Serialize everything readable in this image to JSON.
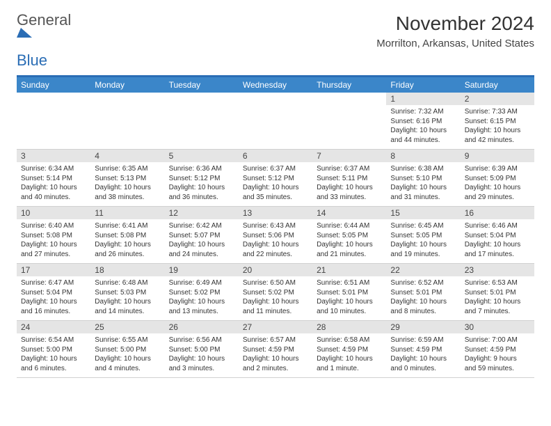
{
  "logo": {
    "text1": "General",
    "text2": "Blue",
    "mark_color": "#2a6db5"
  },
  "header": {
    "month": "November 2024",
    "location": "Morrilton, Arkansas, United States"
  },
  "colors": {
    "header_bar": "#3b86c9",
    "top_border": "#2a6db5",
    "daynum_bg": "#e5e5e5"
  },
  "weekdays": [
    "Sunday",
    "Monday",
    "Tuesday",
    "Wednesday",
    "Thursday",
    "Friday",
    "Saturday"
  ],
  "weeks": [
    [
      {
        "d": "",
        "sr": "",
        "ss": "",
        "dl": ""
      },
      {
        "d": "",
        "sr": "",
        "ss": "",
        "dl": ""
      },
      {
        "d": "",
        "sr": "",
        "ss": "",
        "dl": ""
      },
      {
        "d": "",
        "sr": "",
        "ss": "",
        "dl": ""
      },
      {
        "d": "",
        "sr": "",
        "ss": "",
        "dl": ""
      },
      {
        "d": "1",
        "sr": "Sunrise: 7:32 AM",
        "ss": "Sunset: 6:16 PM",
        "dl": "Daylight: 10 hours and 44 minutes."
      },
      {
        "d": "2",
        "sr": "Sunrise: 7:33 AM",
        "ss": "Sunset: 6:15 PM",
        "dl": "Daylight: 10 hours and 42 minutes."
      }
    ],
    [
      {
        "d": "3",
        "sr": "Sunrise: 6:34 AM",
        "ss": "Sunset: 5:14 PM",
        "dl": "Daylight: 10 hours and 40 minutes."
      },
      {
        "d": "4",
        "sr": "Sunrise: 6:35 AM",
        "ss": "Sunset: 5:13 PM",
        "dl": "Daylight: 10 hours and 38 minutes."
      },
      {
        "d": "5",
        "sr": "Sunrise: 6:36 AM",
        "ss": "Sunset: 5:12 PM",
        "dl": "Daylight: 10 hours and 36 minutes."
      },
      {
        "d": "6",
        "sr": "Sunrise: 6:37 AM",
        "ss": "Sunset: 5:12 PM",
        "dl": "Daylight: 10 hours and 35 minutes."
      },
      {
        "d": "7",
        "sr": "Sunrise: 6:37 AM",
        "ss": "Sunset: 5:11 PM",
        "dl": "Daylight: 10 hours and 33 minutes."
      },
      {
        "d": "8",
        "sr": "Sunrise: 6:38 AM",
        "ss": "Sunset: 5:10 PM",
        "dl": "Daylight: 10 hours and 31 minutes."
      },
      {
        "d": "9",
        "sr": "Sunrise: 6:39 AM",
        "ss": "Sunset: 5:09 PM",
        "dl": "Daylight: 10 hours and 29 minutes."
      }
    ],
    [
      {
        "d": "10",
        "sr": "Sunrise: 6:40 AM",
        "ss": "Sunset: 5:08 PM",
        "dl": "Daylight: 10 hours and 27 minutes."
      },
      {
        "d": "11",
        "sr": "Sunrise: 6:41 AM",
        "ss": "Sunset: 5:08 PM",
        "dl": "Daylight: 10 hours and 26 minutes."
      },
      {
        "d": "12",
        "sr": "Sunrise: 6:42 AM",
        "ss": "Sunset: 5:07 PM",
        "dl": "Daylight: 10 hours and 24 minutes."
      },
      {
        "d": "13",
        "sr": "Sunrise: 6:43 AM",
        "ss": "Sunset: 5:06 PM",
        "dl": "Daylight: 10 hours and 22 minutes."
      },
      {
        "d": "14",
        "sr": "Sunrise: 6:44 AM",
        "ss": "Sunset: 5:05 PM",
        "dl": "Daylight: 10 hours and 21 minutes."
      },
      {
        "d": "15",
        "sr": "Sunrise: 6:45 AM",
        "ss": "Sunset: 5:05 PM",
        "dl": "Daylight: 10 hours and 19 minutes."
      },
      {
        "d": "16",
        "sr": "Sunrise: 6:46 AM",
        "ss": "Sunset: 5:04 PM",
        "dl": "Daylight: 10 hours and 17 minutes."
      }
    ],
    [
      {
        "d": "17",
        "sr": "Sunrise: 6:47 AM",
        "ss": "Sunset: 5:04 PM",
        "dl": "Daylight: 10 hours and 16 minutes."
      },
      {
        "d": "18",
        "sr": "Sunrise: 6:48 AM",
        "ss": "Sunset: 5:03 PM",
        "dl": "Daylight: 10 hours and 14 minutes."
      },
      {
        "d": "19",
        "sr": "Sunrise: 6:49 AM",
        "ss": "Sunset: 5:02 PM",
        "dl": "Daylight: 10 hours and 13 minutes."
      },
      {
        "d": "20",
        "sr": "Sunrise: 6:50 AM",
        "ss": "Sunset: 5:02 PM",
        "dl": "Daylight: 10 hours and 11 minutes."
      },
      {
        "d": "21",
        "sr": "Sunrise: 6:51 AM",
        "ss": "Sunset: 5:01 PM",
        "dl": "Daylight: 10 hours and 10 minutes."
      },
      {
        "d": "22",
        "sr": "Sunrise: 6:52 AM",
        "ss": "Sunset: 5:01 PM",
        "dl": "Daylight: 10 hours and 8 minutes."
      },
      {
        "d": "23",
        "sr": "Sunrise: 6:53 AM",
        "ss": "Sunset: 5:01 PM",
        "dl": "Daylight: 10 hours and 7 minutes."
      }
    ],
    [
      {
        "d": "24",
        "sr": "Sunrise: 6:54 AM",
        "ss": "Sunset: 5:00 PM",
        "dl": "Daylight: 10 hours and 6 minutes."
      },
      {
        "d": "25",
        "sr": "Sunrise: 6:55 AM",
        "ss": "Sunset: 5:00 PM",
        "dl": "Daylight: 10 hours and 4 minutes."
      },
      {
        "d": "26",
        "sr": "Sunrise: 6:56 AM",
        "ss": "Sunset: 5:00 PM",
        "dl": "Daylight: 10 hours and 3 minutes."
      },
      {
        "d": "27",
        "sr": "Sunrise: 6:57 AM",
        "ss": "Sunset: 4:59 PM",
        "dl": "Daylight: 10 hours and 2 minutes."
      },
      {
        "d": "28",
        "sr": "Sunrise: 6:58 AM",
        "ss": "Sunset: 4:59 PM",
        "dl": "Daylight: 10 hours and 1 minute."
      },
      {
        "d": "29",
        "sr": "Sunrise: 6:59 AM",
        "ss": "Sunset: 4:59 PM",
        "dl": "Daylight: 10 hours and 0 minutes."
      },
      {
        "d": "30",
        "sr": "Sunrise: 7:00 AM",
        "ss": "Sunset: 4:59 PM",
        "dl": "Daylight: 9 hours and 59 minutes."
      }
    ]
  ]
}
